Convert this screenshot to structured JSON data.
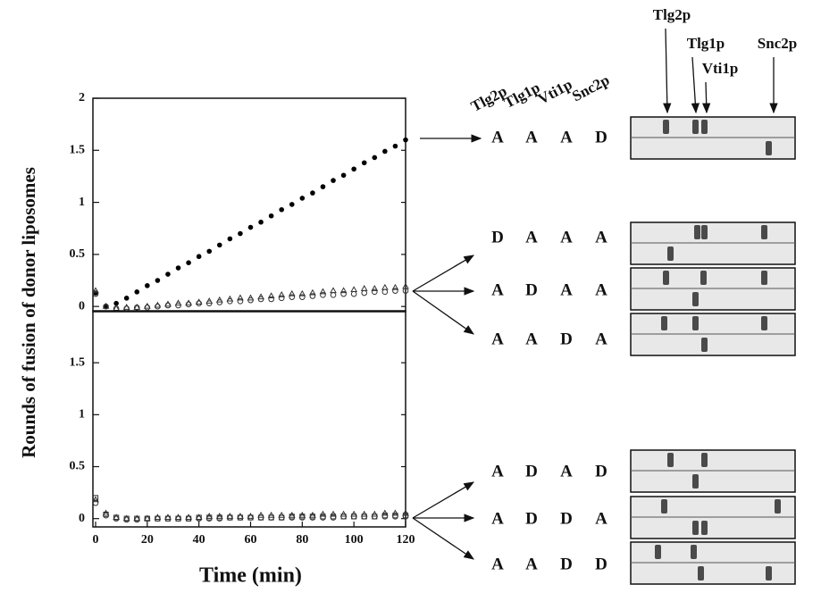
{
  "chart_data": [
    {
      "type": "scatter",
      "ylabel": "Rounds of fusion of donor liposomes",
      "xlim": [
        0,
        120
      ],
      "ylim": [
        -0.05,
        2
      ],
      "yticks": [
        0,
        0.5,
        1,
        1.5,
        2
      ],
      "x": [
        0,
        4,
        8,
        12,
        16,
        20,
        24,
        28,
        32,
        36,
        40,
        44,
        48,
        52,
        56,
        60,
        64,
        68,
        72,
        76,
        80,
        84,
        88,
        92,
        96,
        100,
        104,
        108,
        112,
        116,
        120
      ],
      "series": [
        {
          "marker": "filled-circle",
          "color": "#000000",
          "values": [
            0.13,
            0.0,
            0.03,
            0.08,
            0.14,
            0.2,
            0.25,
            0.31,
            0.37,
            0.42,
            0.48,
            0.53,
            0.59,
            0.65,
            0.7,
            0.76,
            0.81,
            0.87,
            0.93,
            0.98,
            1.04,
            1.09,
            1.15,
            1.21,
            1.26,
            1.32,
            1.38,
            1.43,
            1.49,
            1.54,
            1.6
          ]
        },
        {
          "marker": "open-triangle",
          "color": "#333333",
          "values": [
            0.15,
            0.0,
            -0.02,
            -0.01,
            -0.01,
            0.0,
            0.01,
            0.02,
            0.03,
            0.03,
            0.04,
            0.05,
            0.06,
            0.07,
            0.08,
            0.08,
            0.09,
            0.1,
            0.11,
            0.12,
            0.12,
            0.13,
            0.14,
            0.15,
            0.15,
            0.16,
            0.17,
            0.17,
            0.18,
            0.18,
            0.19
          ]
        },
        {
          "marker": "open-circle",
          "color": "#333333",
          "values": [
            0.12,
            0.0,
            -0.02,
            -0.02,
            -0.01,
            -0.01,
            0.0,
            0.01,
            0.01,
            0.02,
            0.03,
            0.03,
            0.04,
            0.05,
            0.05,
            0.06,
            0.07,
            0.07,
            0.08,
            0.09,
            0.09,
            0.1,
            0.11,
            0.11,
            0.12,
            0.12,
            0.13,
            0.14,
            0.14,
            0.15,
            0.15
          ]
        }
      ]
    },
    {
      "type": "scatter",
      "xlabel": "Time (min)",
      "xlim": [
        0,
        120
      ],
      "ylim": [
        -0.08,
        2
      ],
      "yticks": [
        0,
        0.5,
        1,
        1.5
      ],
      "xticks": [
        0,
        20,
        40,
        60,
        80,
        100,
        120
      ],
      "x": [
        0,
        4,
        8,
        12,
        16,
        20,
        24,
        28,
        32,
        36,
        40,
        44,
        48,
        52,
        56,
        60,
        64,
        68,
        72,
        76,
        80,
        84,
        88,
        92,
        96,
        100,
        104,
        108,
        112,
        116,
        120
      ],
      "series": [
        {
          "marker": "open-square",
          "color": "#333333",
          "values": [
            0.2,
            0.04,
            0.01,
            0.0,
            0.0,
            0.0,
            0.0,
            0.0,
            0.0,
            0.0,
            0.01,
            0.01,
            0.01,
            0.01,
            0.01,
            0.01,
            0.01,
            0.01,
            0.01,
            0.02,
            0.02,
            0.02,
            0.02,
            0.02,
            0.02,
            0.02,
            0.02,
            0.02,
            0.03,
            0.03,
            0.03
          ]
        },
        {
          "marker": "open-triangle",
          "color": "#333333",
          "values": [
            0.18,
            0.05,
            0.01,
            0.0,
            0.0,
            0.0,
            0.01,
            0.01,
            0.01,
            0.01,
            0.01,
            0.02,
            0.02,
            0.02,
            0.02,
            0.02,
            0.03,
            0.03,
            0.03,
            0.03,
            0.03,
            0.03,
            0.04,
            0.04,
            0.04,
            0.04,
            0.04,
            0.04,
            0.05,
            0.05,
            0.05
          ]
        },
        {
          "marker": "open-circle",
          "color": "#333333",
          "values": [
            0.15,
            0.03,
            0.0,
            -0.01,
            -0.01,
            0.0,
            0.0,
            0.0,
            0.0,
            0.0,
            0.0,
            0.0,
            0.0,
            0.01,
            0.01,
            0.01,
            0.01,
            0.01,
            0.01,
            0.01,
            0.01,
            0.01,
            0.01,
            0.01,
            0.02,
            0.02,
            0.02,
            0.02,
            0.02,
            0.02,
            0.02
          ]
        }
      ]
    }
  ],
  "blots": {
    "column_headers": [
      "Tlg2p",
      "Tlg1p",
      "Vti1p",
      "Snc2p"
    ],
    "band_labels": [
      "Tlg2p",
      "Tlg1p",
      "Vti1p",
      "Snc2p"
    ],
    "rows": [
      [
        "A",
        "A",
        "A",
        "D"
      ],
      [
        "D",
        "A",
        "A",
        "A"
      ],
      [
        "A",
        "D",
        "A",
        "A"
      ],
      [
        "A",
        "A",
        "D",
        "A"
      ],
      [
        "A",
        "D",
        "A",
        "D"
      ],
      [
        "A",
        "D",
        "D",
        "A"
      ],
      [
        "A",
        "A",
        "D",
        "D"
      ]
    ]
  }
}
